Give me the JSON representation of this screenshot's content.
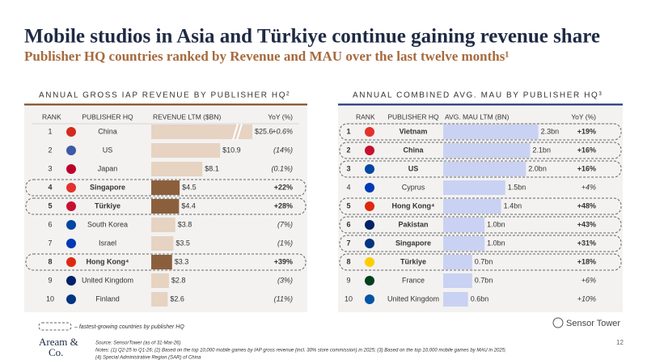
{
  "title": "Mobile studios in Asia and Türkiye continue gaining revenue share",
  "subtitle": "Publisher HQ countries ranked by Revenue and MAU over the last twelve months¹",
  "chart_data": [
    {
      "type": "bar",
      "orientation": "horizontal",
      "title": "ANNUAL GROSS IAP REVENUE BY PUBLISHER HQ²",
      "columns": [
        "RANK",
        "PUBLISHER HQ",
        "REVENUE LTM ($BN)",
        "YoY (%)"
      ],
      "ranks": [
        1,
        2,
        3,
        4,
        5,
        6,
        7,
        8,
        9,
        10
      ],
      "categories": [
        "China",
        "US",
        "Japan",
        "Singapore",
        "Türkiye",
        "South Korea",
        "Israel",
        "Hong Kong⁴",
        "United Kingdom",
        "Finland"
      ],
      "values": [
        25.6,
        10.9,
        8.1,
        4.5,
        4.4,
        3.8,
        3.5,
        3.3,
        2.8,
        2.6
      ],
      "value_labels": [
        "$25.6",
        "$10.9",
        "$8.1",
        "$4.5",
        "$4.4",
        "$3.8",
        "$3.5",
        "$3.3",
        "$2.8",
        "$2.6"
      ],
      "yoy": [
        "+0.6%",
        "(14%)",
        "(0.1%)",
        "+22%",
        "+28%",
        "(7%)",
        "(1%)",
        "+39%",
        "(3%)",
        "(11%)"
      ],
      "highlighted": [
        false,
        false,
        false,
        true,
        true,
        false,
        false,
        true,
        false,
        false
      ],
      "color": "#e6d3c2",
      "highlight_color": "#8c5f3c",
      "header_color": "#8c5f3c",
      "xlim": [
        0,
        16
      ],
      "axis_break": true
    },
    {
      "type": "bar",
      "orientation": "horizontal",
      "title": "ANNUAL COMBINED AVG. MAU BY PUBLISHER HQ³",
      "columns": [
        "RANK",
        "PUBLISHER HQ",
        "AVG. MAU LTM (BN)",
        "YoY (%)"
      ],
      "ranks": [
        1,
        2,
        3,
        4,
        5,
        6,
        7,
        8,
        9,
        10
      ],
      "categories": [
        "Vietnam",
        "China",
        "US",
        "Cyprus",
        "Hong Kong⁴",
        "Pakistan",
        "Singapore",
        "Türkiye",
        "France",
        "United Kingdom"
      ],
      "values": [
        2.3,
        2.1,
        2.0,
        1.5,
        1.4,
        1.0,
        1.0,
        0.7,
        0.7,
        0.6
      ],
      "value_labels": [
        "2.3bn",
        "2.1bn",
        "2.0bn",
        "1.5bn",
        "1.4bn",
        "1.0bn",
        "1.0bn",
        "0.7bn",
        "0.7bn",
        "0.6bn"
      ],
      "yoy": [
        "+19%",
        "+16%",
        "+16%",
        "+4%",
        "+48%",
        "+43%",
        "+31%",
        "+18%",
        "+6%",
        "+10%"
      ],
      "highlighted": [
        true,
        true,
        true,
        false,
        true,
        true,
        true,
        true,
        false,
        false
      ],
      "color": "#c9d2f2",
      "highlight_color": "#c9d2f2",
      "header_color": "#3b4a86",
      "xlim": [
        0,
        2.6
      ],
      "axis_break": false
    }
  ],
  "legend_note": "– fastest-growing countries by publisher HQ",
  "source": "Source: SensorTower (as of 31-Mar-26)",
  "notes": [
    "Notes: (1) Q2-25 to Q1-26; (2) Based on the top 10,000 mobile games by IAP gross revenue (incl. 30% store commission) in 2025; (3) Based on the top 10,000 mobile games by MAU in 2025;",
    "(4) Special Administrative Region (SAR) of China"
  ],
  "logo": [
    "Aream &",
    "Co."
  ],
  "brand": "Sensor Tower",
  "page": "12"
}
